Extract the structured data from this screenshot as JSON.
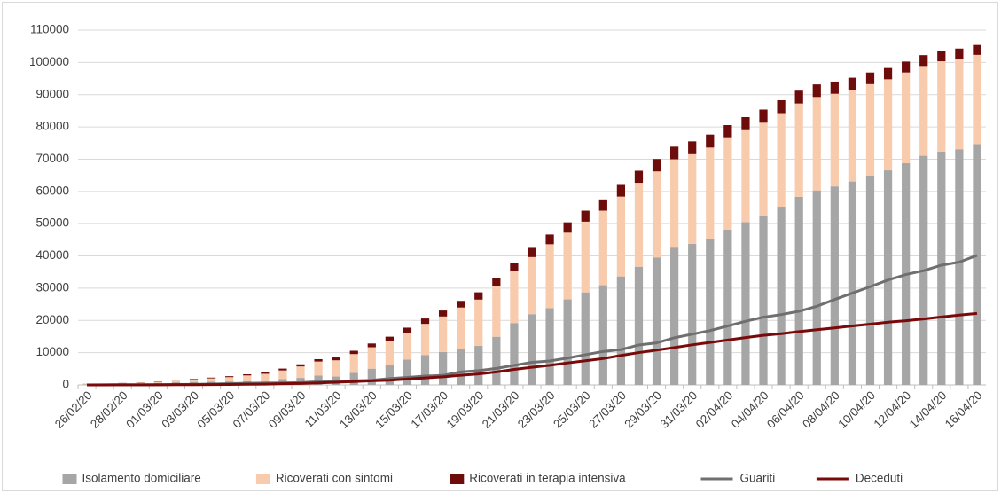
{
  "chart_data": {
    "type": "bar",
    "stacked": true,
    "grid": true,
    "legend": "bottom",
    "categories": [
      "26/02/20",
      null,
      "28/02/20",
      null,
      "01/03/20",
      null,
      "03/03/20",
      null,
      "05/03/20",
      null,
      "07/03/20",
      null,
      "09/03/20",
      null,
      "11/03/20",
      null,
      "13/03/20",
      null,
      "15/03/20",
      null,
      "17/03/20",
      null,
      "19/03/20",
      null,
      "21/03/20",
      null,
      "23/03/20",
      null,
      "25/03/20",
      null,
      "27/03/20",
      null,
      "29/03/20",
      null,
      "31/03/20",
      null,
      "02/04/20",
      null,
      "04/04/20",
      null,
      "06/04/20",
      null,
      "08/04/20",
      null,
      "10/04/20",
      null,
      "12/04/20",
      null,
      "14/04/20",
      null,
      "16/04/20"
    ],
    "ylim": [
      0,
      110000
    ],
    "yticks": [
      0,
      10000,
      20000,
      30000,
      40000,
      50000,
      60000,
      70000,
      80000,
      90000,
      100000,
      110000
    ],
    "series": [
      {
        "name": "Isolamento domiciliare",
        "type": "bar",
        "color": "#a6a6a6",
        "values": [
          162,
          221,
          284,
          412,
          543,
          798,
          927,
          1000,
          1065,
          1155,
          1060,
          1843,
          2180,
          2936,
          2599,
          3724,
          5036,
          6201,
          7860,
          9268,
          10197,
          11108,
          12090,
          14935,
          19185,
          21937,
          23783,
          26522,
          28697,
          30920,
          33648,
          36653,
          39533,
          42588,
          43752,
          45420,
          48134,
          50456,
          52579,
          55270,
          58320,
          60313,
          61557,
          63084,
          64873,
          66534,
          68744,
          71063,
          72333,
          73094,
          74696
        ]
      },
      {
        "name": "Ricoverati con sintomi",
        "type": "bar",
        "color": "#f8cbad",
        "values": [
          114,
          128,
          248,
          345,
          401,
          639,
          742,
          1034,
          1346,
          1790,
          2394,
          2651,
          3557,
          4316,
          5038,
          5838,
          6650,
          7426,
          8372,
          9663,
          11025,
          12894,
          14363,
          15757,
          16020,
          17708,
          19846,
          20692,
          21937,
          23112,
          24753,
          26029,
          26676,
          27386,
          27795,
          28192,
          28403,
          28540,
          28741,
          29010,
          28949,
          28976,
          28718,
          28485,
          28399,
          28242,
          28144,
          27847,
          28023,
          28011,
          27643
        ]
      },
      {
        "name": "Ricoverati in terapia intensiva",
        "type": "bar",
        "color": "#6e0b0b",
        "values": [
          35,
          36,
          56,
          64,
          105,
          140,
          166,
          229,
          295,
          351,
          462,
          567,
          650,
          733,
          877,
          1028,
          1153,
          1328,
          1518,
          1672,
          1851,
          2060,
          2257,
          2498,
          2655,
          2857,
          3009,
          3204,
          3396,
          3489,
          3612,
          3732,
          3856,
          3906,
          3981,
          4023,
          4035,
          4053,
          4068,
          3994,
          3977,
          3898,
          3792,
          3693,
          3605,
          3497,
          3381,
          3343,
          3260,
          3186,
          3079
        ]
      },
      {
        "name": "Guariti",
        "type": "line",
        "color": "#6f6f6f",
        "values": [
          3,
          45,
          46,
          50,
          83,
          149,
          160,
          276,
          414,
          523,
          589,
          622,
          724,
          1004,
          1045,
          1258,
          1439,
          1966,
          2335,
          2749,
          2941,
          4025,
          4440,
          5129,
          6072,
          7024,
          7432,
          8326,
          9362,
          10361,
          10950,
          12384,
          13030,
          14620,
          15729,
          16847,
          18278,
          19758,
          20996,
          21815,
          22837,
          24392,
          26491,
          28470,
          30455,
          32534,
          34211,
          35435,
          37130,
          38092,
          40164
        ]
      },
      {
        "name": "Deceduti",
        "type": "line",
        "color": "#7a0a0a",
        "values": [
          12,
          17,
          21,
          29,
          34,
          52,
          79,
          107,
          148,
          197,
          233,
          366,
          463,
          631,
          827,
          1016,
          1266,
          1441,
          1809,
          2158,
          2503,
          2978,
          3405,
          4032,
          4825,
          5476,
          6077,
          6820,
          7503,
          8165,
          9134,
          10023,
          10779,
          11591,
          12428,
          13155,
          13915,
          14681,
          15362,
          15887,
          16523,
          17127,
          17669,
          18279,
          18849,
          19468,
          19899,
          20465,
          21067,
          21645,
          22170
        ]
      }
    ]
  }
}
